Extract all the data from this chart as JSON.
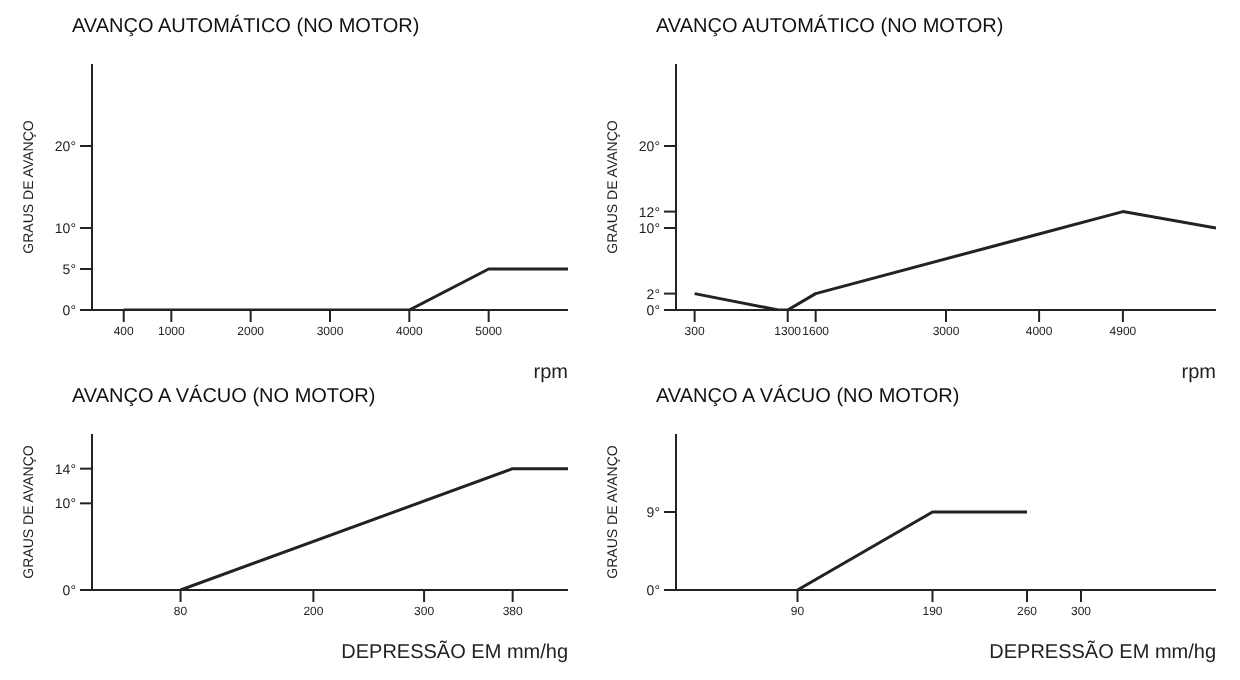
{
  "chart_data": [
    {
      "type": "line",
      "title": "AVANÇO AUTOMÁTICO (NO MOTOR)",
      "xlabel": "rpm",
      "ylabel": "GRAUS DE AVANÇO",
      "x": [
        400,
        4000,
        5000,
        6000
      ],
      "series": [
        {
          "color": "#222222",
          "values": [
            0,
            0,
            5,
            5
          ]
        }
      ],
      "xlim": [
        0,
        6000
      ],
      "xticks": [
        400,
        1000,
        2000,
        3000,
        4000,
        5000
      ],
      "ylim": [
        0,
        30
      ],
      "yticks": [
        {
          "value": 0,
          "label": "0°"
        },
        {
          "value": 5,
          "label": "5°"
        },
        {
          "value": 10,
          "label": "10°"
        },
        {
          "value": 20,
          "label": "20°"
        }
      ],
      "grid": false
    },
    {
      "type": "line",
      "title": "AVANÇO AUTOMÁTICO (NO MOTOR)",
      "xlabel": "rpm",
      "ylabel": "GRAUS DE AVANÇO",
      "x": [
        300,
        1200,
        1300,
        1600,
        4900,
        5900
      ],
      "series": [
        {
          "color": "#222222",
          "values": [
            2,
            0,
            0,
            2,
            12,
            10
          ]
        }
      ],
      "xlim": [
        100,
        5900
      ],
      "xticks": [
        300,
        1300,
        1600,
        3000,
        4000,
        4900
      ],
      "ylim": [
        0,
        30
      ],
      "yticks": [
        {
          "value": 0,
          "label": "0°"
        },
        {
          "value": 2,
          "label": "2°"
        },
        {
          "value": 10,
          "label": "10°"
        },
        {
          "value": 12,
          "label": "12°"
        },
        {
          "value": 20,
          "label": "20°"
        }
      ],
      "grid": false
    },
    {
      "type": "line",
      "title": "AVANÇO A VÁCUO (NO MOTOR)",
      "xlabel": "DEPRESSÃO EM mm/hg",
      "ylabel": "GRAUS DE AVANÇO",
      "x": [
        80,
        380,
        430
      ],
      "series": [
        {
          "color": "#222222",
          "values": [
            0,
            14,
            14
          ]
        }
      ],
      "xlim": [
        0,
        430
      ],
      "xticks": [
        80,
        200,
        300,
        380
      ],
      "ylim": [
        0,
        18
      ],
      "yticks": [
        {
          "value": 0,
          "label": "0°"
        },
        {
          "value": 10,
          "label": "10°"
        },
        {
          "value": 14,
          "label": "14°"
        }
      ],
      "grid": false
    },
    {
      "type": "line",
      "title": "AVANÇO A VÁCUO (NO MOTOR)",
      "xlabel": "DEPRESSÃO EM mm/hg",
      "ylabel": "GRAUS DE AVANÇO",
      "x": [
        90,
        190,
        260
      ],
      "series": [
        {
          "color": "#222222",
          "values": [
            0,
            9,
            9
          ]
        }
      ],
      "xlim": [
        0,
        400
      ],
      "xticks": [
        90,
        190,
        260,
        300
      ],
      "ylim": [
        0,
        18
      ],
      "yticks": [
        {
          "value": 0,
          "label": "0°"
        },
        {
          "value": 9,
          "label": "9°"
        }
      ],
      "grid": false
    }
  ]
}
